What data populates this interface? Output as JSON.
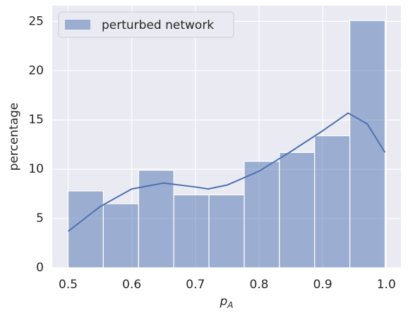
{
  "chart_data": {
    "type": "histogram",
    "x_label": "p",
    "x_label_subscript": "A",
    "y_label": "percentage",
    "name": "perturbed network",
    "color": "#4c72b0",
    "legend": "upper left",
    "grid": true,
    "bins": [
      0.5,
      0.5553,
      0.6107,
      0.666,
      0.7213,
      0.7767,
      0.832,
      0.8873,
      0.9427,
      0.998
    ],
    "values": [
      7.8,
      6.5,
      9.9,
      7.4,
      7.4,
      10.8,
      11.7,
      13.4,
      25.1
    ],
    "kde": {
      "x": [
        0.5,
        0.55,
        0.6,
        0.65,
        0.7,
        0.72,
        0.75,
        0.8,
        0.85,
        0.9,
        0.94,
        0.97,
        0.998
      ],
      "values": [
        3.7,
        6.2,
        8.0,
        8.6,
        8.2,
        8.0,
        8.4,
        9.8,
        11.8,
        13.9,
        15.7,
        14.6,
        11.7
      ]
    },
    "xlim": [
      0.475,
      1.023
    ],
    "ylim": [
      0,
      26.6
    ],
    "xticks": [
      0.5,
      0.6,
      0.7,
      0.8,
      0.9,
      {
        "value": 1,
        "label": "1.0"
      }
    ],
    "yticks": [
      0,
      5,
      10,
      15,
      20,
      25
    ]
  }
}
